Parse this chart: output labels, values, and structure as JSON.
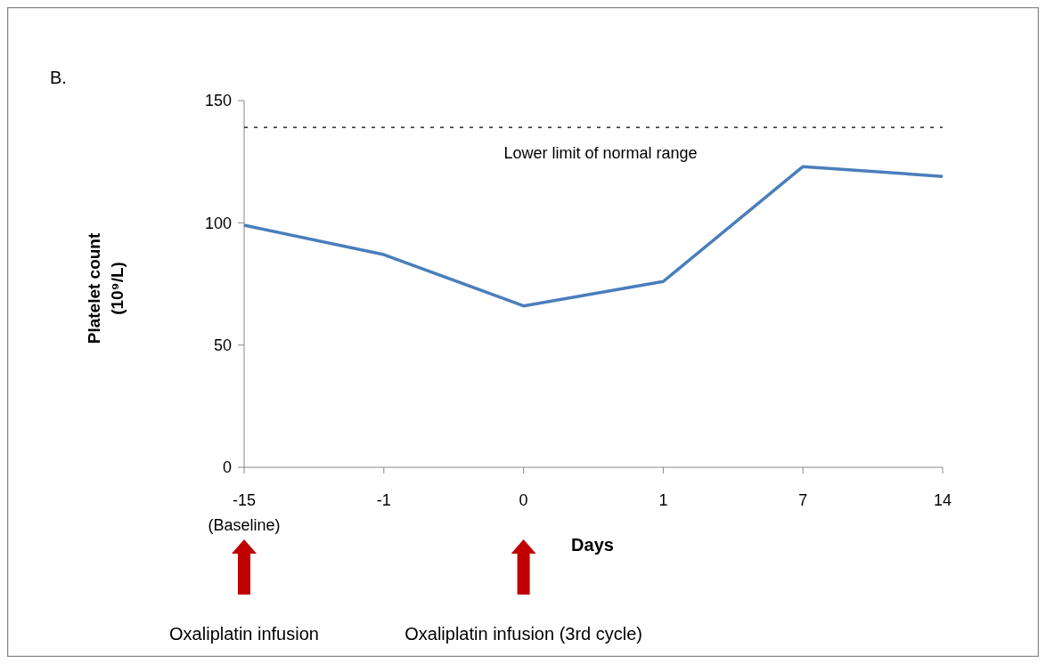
{
  "chart_data": {
    "type": "line",
    "title": "B.",
    "xlabel": "Days",
    "ylabel": "Platelet count\n(10⁹/L)",
    "categories": [
      "-15\n(Baseline)",
      "-1",
      "0",
      "1",
      "7",
      "14"
    ],
    "series": [
      {
        "color": "#4a7ebb",
        "values": [
          99,
          87,
          66,
          76,
          123,
          119
        ]
      }
    ],
    "ylim": [
      0,
      150
    ],
    "yticks": [
      0,
      50,
      100,
      150
    ],
    "grid": false,
    "marker": "none",
    "line_style": "solid",
    "ref_lines": [
      {
        "axis": "y",
        "value": 139,
        "label": "Lower limit of normal range",
        "color": "#000000",
        "line_style": "dashed"
      }
    ],
    "annotations": [
      "Oxaliplatin infusion",
      "Oxaliplatin infusion (3rd cycle)"
    ]
  }
}
